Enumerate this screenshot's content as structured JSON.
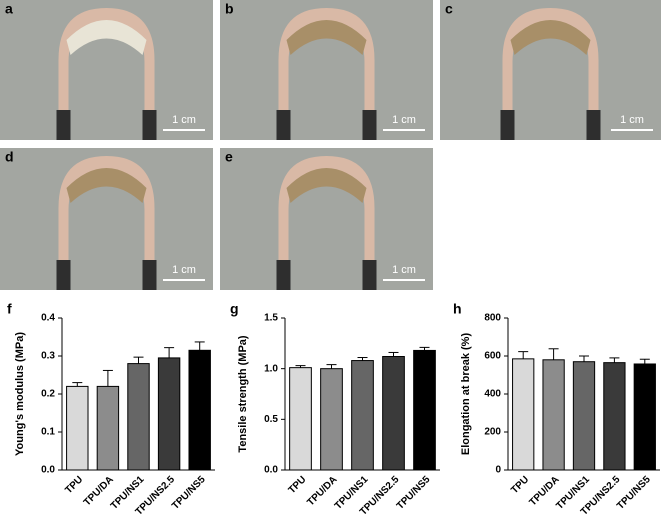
{
  "photo_panels": [
    {
      "label": "a",
      "scale": "1 cm"
    },
    {
      "label": "b",
      "scale": "1 cm"
    },
    {
      "label": "c",
      "scale": "1 cm"
    },
    {
      "label": "d",
      "scale": "1 cm"
    },
    {
      "label": "e",
      "scale": "1 cm"
    }
  ],
  "chart_data": [
    {
      "type": "bar",
      "panel_label": "f",
      "y_label": "Young's modulus (MPa)",
      "categories": [
        "TPU",
        "TPU/DA",
        "TPU/NS1",
        "TPU/NS2.5",
        "TPU/NS5"
      ],
      "values": [
        0.22,
        0.22,
        0.28,
        0.295,
        0.315
      ],
      "errors": [
        0.01,
        0.042,
        0.017,
        0.027,
        0.022
      ],
      "colors": [
        "#d9d9d9",
        "#8c8c8c",
        "#666666",
        "#3a3a3a",
        "#000000"
      ],
      "ylim": [
        0,
        0.4
      ],
      "yticks": [
        {
          "value": 0,
          "label": "0.0"
        },
        0.1,
        0.2,
        0.3,
        0.4
      ]
    },
    {
      "type": "bar",
      "panel_label": "g",
      "y_label": "Tensile strength (MPa)",
      "categories": [
        "TPU",
        "TPU/DA",
        "TPU/NS1",
        "TPU/NS2.5",
        "TPU/NS5"
      ],
      "values": [
        1.01,
        1.0,
        1.08,
        1.12,
        1.18
      ],
      "errors": [
        0.02,
        0.04,
        0.03,
        0.04,
        0.03
      ],
      "colors": [
        "#d9d9d9",
        "#8c8c8c",
        "#666666",
        "#3a3a3a",
        "#000000"
      ],
      "ylim": [
        0,
        1.5
      ],
      "yticks": [
        {
          "value": 0,
          "label": "0.0"
        },
        0.5,
        {
          "value": 1,
          "label": "1.0"
        },
        1.5
      ]
    },
    {
      "type": "bar",
      "panel_label": "h",
      "y_label": "Elongation at break (%)",
      "categories": [
        "TPU",
        "TPU/DA",
        "TPU/NS1",
        "TPU/NS2.5",
        "TPU/NS5"
      ],
      "values": [
        585,
        580,
        570,
        565,
        558
      ],
      "errors": [
        38,
        58,
        30,
        25,
        25
      ],
      "colors": [
        "#d9d9d9",
        "#8c8c8c",
        "#666666",
        "#3a3a3a",
        "#000000"
      ],
      "ylim": [
        0,
        800
      ],
      "yticks": [
        0,
        200,
        400,
        600,
        800
      ]
    }
  ]
}
